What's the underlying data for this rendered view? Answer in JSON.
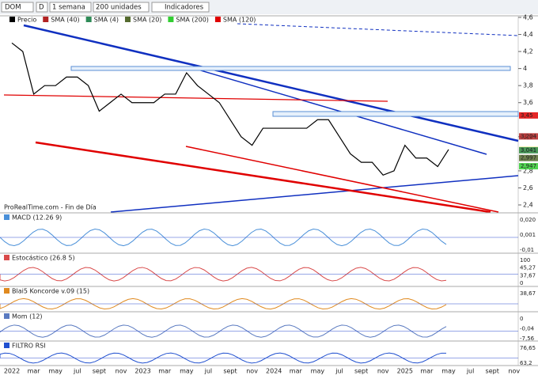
{
  "toolbar": {
    "symbol": "DOM",
    "mode": "D",
    "period": "1 semana",
    "units": "200 unidades",
    "indicators": "Indicadores"
  },
  "price_panel": {
    "legend": [
      "Precio",
      "SMA (40)",
      "SMA (4)",
      "SMA (20)",
      "SMA (200)",
      "SMA (120)"
    ],
    "legend_colors": [
      "#000000",
      "#b22222",
      "#2e8b57",
      "#556b2f",
      "#32cd32",
      "#e00000"
    ],
    "ylim": [
      2.4,
      4.6
    ],
    "yticks": [
      {
        "value": 4.6,
        "label": "4,6"
      },
      {
        "value": 4.4,
        "label": "4,4"
      },
      {
        "value": 4.2,
        "label": "4,2"
      },
      4,
      {
        "value": 3.8,
        "label": "3,8"
      },
      {
        "value": 3.6,
        "label": "3,6"
      },
      {
        "value": 3.2,
        "label": "3,2"
      },
      {
        "value": 2.8,
        "label": "2,8"
      },
      {
        "value": 2.6,
        "label": "2,6"
      },
      {
        "value": 2.4,
        "label": "2,4"
      }
    ],
    "price_labels": [
      {
        "value": 3.45,
        "label": "3,45",
        "color": "#e00000"
      },
      {
        "value": 3.204,
        "label": "3,204",
        "color": "#b22222"
      },
      {
        "value": 3.045,
        "label": "3,045",
        "color": "#f5e642"
      },
      {
        "value": 3.041,
        "label": "3,041",
        "color": "#2e8b57"
      },
      {
        "value": 2.997,
        "label": "2,997",
        "color": "#556b2f"
      },
      {
        "value": 2.947,
        "label": "2,947",
        "color": "#32cd32"
      }
    ],
    "close": [
      4.3,
      4.2,
      3.7,
      3.8,
      3.8,
      3.9,
      3.9,
      3.8,
      3.5,
      3.6,
      3.7,
      3.6,
      3.6,
      3.6,
      3.7,
      3.7,
      3.95,
      3.8,
      3.7,
      3.6,
      3.4,
      3.2,
      3.1,
      3.3,
      3.3,
      3.3,
      3.3,
      3.3,
      3.4,
      3.4,
      3.2,
      3.0,
      2.9,
      2.9,
      2.75,
      2.8,
      3.1,
      2.95,
      2.95,
      2.85,
      3.05
    ],
    "footer": "ProRealTime.com - Fin de Día"
  },
  "indicator_panels": [
    {
      "title": "MACD (12.26 9)",
      "labels": [
        "0,020",
        "0,001",
        "-0,01"
      ]
    },
    {
      "title": "Estocástico (26.8 5)",
      "labels": [
        "100",
        "45,27",
        "37,67",
        "0"
      ]
    },
    {
      "title": "Blai5 Koncorde v.09 (15)",
      "labels": [
        "38,67"
      ]
    },
    {
      "title": "Mom (12)",
      "labels": [
        "0",
        "-0,04",
        "-7,56"
      ]
    },
    {
      "title": "FILTRO RSI",
      "labels": [
        "76,65",
        "63,2"
      ]
    }
  ],
  "x_axis": [
    "2022",
    "mar",
    "may",
    "jul",
    "sept",
    "nov",
    "2023",
    "mar",
    "may",
    "jul",
    "sept",
    "nov",
    "2024",
    "mar",
    "may",
    "jul",
    "sept",
    "nov",
    "2025",
    "mar",
    "may",
    "jul",
    "sept",
    "nov"
  ]
}
